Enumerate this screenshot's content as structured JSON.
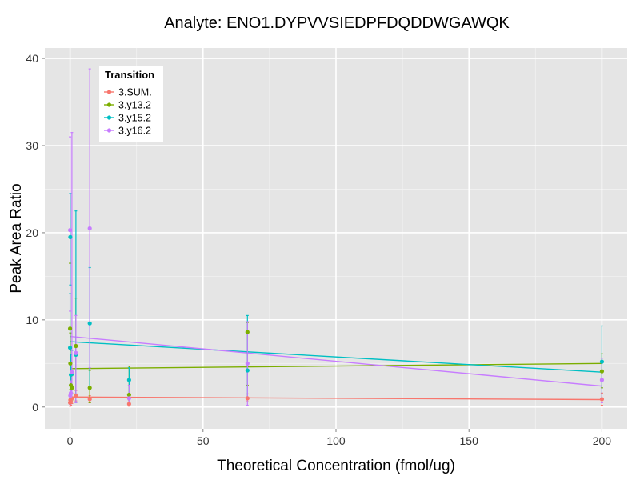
{
  "chart_data": {
    "type": "scatter",
    "title": "Analyte: ENO1.DYPVVSIEDPFDQDDWGAWQK",
    "xlabel": "Theoretical Concentration (fmol/ug)",
    "ylabel": "Peak Area Ratio",
    "xlim": [
      -9.5,
      209.5
    ],
    "ylim": [
      -2.5,
      41.2
    ],
    "x_ticks": [
      0,
      50,
      100,
      150,
      200
    ],
    "y_ticks": [
      0,
      10,
      20,
      30,
      40
    ],
    "grid": true,
    "legend": {
      "title": "Transition",
      "position": "top-left"
    },
    "series": [
      {
        "name": "3.SUM.",
        "color": "#F8766D",
        "points": [
          {
            "x": 0,
            "y": 0.5,
            "lo": 0.1,
            "hi": 1.0
          },
          {
            "x": 0.1,
            "y": 0.8,
            "lo": 0.3,
            "hi": 1.3
          },
          {
            "x": 0.3,
            "y": 0.6,
            "lo": 0.2,
            "hi": 1.1
          },
          {
            "x": 0.7,
            "y": 1.0,
            "lo": 0.4,
            "hi": 1.6
          },
          {
            "x": 2.2,
            "y": 1.3,
            "lo": 0.7,
            "hi": 1.9
          },
          {
            "x": 7.4,
            "y": 0.9,
            "lo": 0.5,
            "hi": 1.3
          },
          {
            "x": 22.2,
            "y": 0.35,
            "lo": 0.1,
            "hi": 0.8
          },
          {
            "x": 66.7,
            "y": 1.0,
            "lo": 0.6,
            "hi": 1.5
          },
          {
            "x": 200,
            "y": 0.9,
            "lo": 0.2,
            "hi": 1.6
          }
        ],
        "fit": [
          [
            0,
            1.15
          ],
          [
            200,
            0.85
          ]
        ]
      },
      {
        "name": "3.y13.2",
        "color": "#7CAE00",
        "points": [
          {
            "x": 0,
            "y": 9.0,
            "lo": 1.5,
            "hi": 16.5
          },
          {
            "x": 0.1,
            "y": 5.0,
            "lo": 2.0,
            "hi": 8.5
          },
          {
            "x": 0.3,
            "y": 2.5,
            "lo": 1.0,
            "hi": 4.5
          },
          {
            "x": 0.7,
            "y": 2.2,
            "lo": 0.8,
            "hi": 3.6
          },
          {
            "x": 2.2,
            "y": 7.0,
            "lo": 1.5,
            "hi": 12.5
          },
          {
            "x": 7.4,
            "y": 2.2,
            "lo": 0.5,
            "hi": 4.2
          },
          {
            "x": 22.2,
            "y": 1.4,
            "lo": 0.3,
            "hi": 4.7
          },
          {
            "x": 66.7,
            "y": 8.6,
            "lo": 2.5,
            "hi": 9.7
          },
          {
            "x": 200,
            "y": 4.1,
            "lo": 2.2,
            "hi": 6.1
          }
        ],
        "fit": [
          [
            0,
            4.4
          ],
          [
            200,
            5.0
          ]
        ]
      },
      {
        "name": "3.y15.2",
        "color": "#00BFC4",
        "points": [
          {
            "x": 0,
            "y": 6.8,
            "lo": 0.5,
            "hi": 13.0
          },
          {
            "x": 0.1,
            "y": 19.5,
            "lo": 14.0,
            "hi": 24.5
          },
          {
            "x": 0.3,
            "y": 3.7,
            "lo": 1.5,
            "hi": 6.0
          },
          {
            "x": 0.7,
            "y": 3.8,
            "lo": 1.0,
            "hi": 6.5
          },
          {
            "x": 2.2,
            "y": 6.0,
            "lo": 0.5,
            "hi": 22.5
          },
          {
            "x": 7.4,
            "y": 9.6,
            "lo": 2.0,
            "hi": 16.0
          },
          {
            "x": 22.2,
            "y": 3.1,
            "lo": 1.0,
            "hi": 4.5
          },
          {
            "x": 66.7,
            "y": 4.2,
            "lo": 1.0,
            "hi": 10.5
          },
          {
            "x": 200,
            "y": 5.2,
            "lo": 1.0,
            "hi": 9.3
          }
        ],
        "fit": [
          [
            0,
            7.5
          ],
          [
            200,
            4.0
          ]
        ]
      },
      {
        "name": "3.y16.2",
        "color": "#C77CFF",
        "points": [
          {
            "x": 0,
            "y": 20.3,
            "lo": 11.0,
            "hi": 31.0
          },
          {
            "x": 0.1,
            "y": 1.3,
            "lo": 0.3,
            "hi": 2.5
          },
          {
            "x": 0.3,
            "y": 1.6,
            "lo": 0.5,
            "hi": 3.0
          },
          {
            "x": 0.7,
            "y": 4.0,
            "lo": 1.5,
            "hi": 31.5
          },
          {
            "x": 2.2,
            "y": 6.2,
            "lo": 0.5,
            "hi": 10.5
          },
          {
            "x": 7.4,
            "y": 20.5,
            "lo": 4.5,
            "hi": 38.8
          },
          {
            "x": 22.2,
            "y": 1.0,
            "lo": 0.2,
            "hi": 2.5
          },
          {
            "x": 66.7,
            "y": 5.0,
            "lo": 0.2,
            "hi": 9.8
          },
          {
            "x": 200,
            "y": 3.1,
            "lo": 0.5,
            "hi": 5.6
          }
        ],
        "fit": [
          [
            0,
            8.1
          ],
          [
            200,
            2.4
          ]
        ]
      }
    ]
  }
}
